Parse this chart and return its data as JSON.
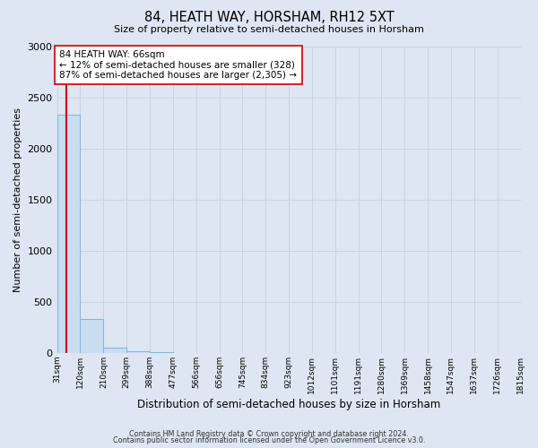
{
  "title": "84, HEATH WAY, HORSHAM, RH12 5XT",
  "subtitle": "Size of property relative to semi-detached houses in Horsham",
  "xlabel": "Distribution of semi-detached houses by size in Horsham",
  "ylabel": "Number of semi-detached properties",
  "property_size": 66,
  "pct_smaller": 12,
  "pct_larger": 87,
  "count_smaller": 328,
  "count_larger": 2305,
  "bin_edges": [
    31,
    120,
    210,
    299,
    388,
    477,
    566,
    656,
    745,
    834,
    923,
    1012,
    1101,
    1191,
    1280,
    1369,
    1458,
    1547,
    1637,
    1726,
    1815
  ],
  "bin_labels": [
    "31sqm",
    "120sqm",
    "210sqm",
    "299sqm",
    "388sqm",
    "477sqm",
    "566sqm",
    "656sqm",
    "745sqm",
    "834sqm",
    "923sqm",
    "1012sqm",
    "1101sqm",
    "1191sqm",
    "1280sqm",
    "1369sqm",
    "1458sqm",
    "1547sqm",
    "1637sqm",
    "1726sqm",
    "1815sqm"
  ],
  "bar_heights": [
    2330,
    330,
    50,
    15,
    5,
    3,
    2,
    1,
    1,
    1,
    0,
    0,
    0,
    0,
    0,
    0,
    0,
    0,
    0,
    0
  ],
  "bar_color": "#c9ddf0",
  "bar_edge_color": "#7db8d8",
  "property_line_color": "#cc0000",
  "annotation_box_facecolor": "#ffffff",
  "annotation_box_edgecolor": "#cc0000",
  "ylim": [
    0,
    3000
  ],
  "yticks": [
    0,
    500,
    1000,
    1500,
    2000,
    2500,
    3000
  ],
  "grid_color": "#c8d4e4",
  "background_color": "#dde6f2",
  "footer_line1": "Contains HM Land Registry data © Crown copyright and database right 2024.",
  "footer_line2": "Contains public sector information licensed under the Open Government Licence v3.0."
}
